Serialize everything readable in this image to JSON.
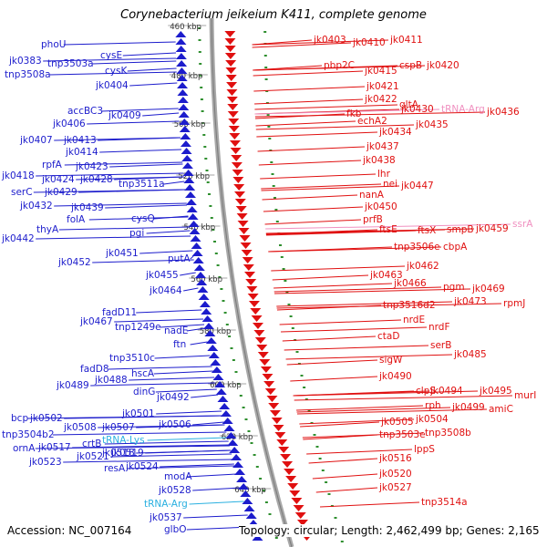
{
  "title": "Corynebacterium jeikeium K411, complete genome",
  "accession": "Accession: NC_007164",
  "topology": "Topology: circular; Length: 2,462,499 bp; Genes: 2,165",
  "colors": {
    "left_gene": "#1c1ccc",
    "right_gene": "#e01010",
    "trna_left": "#2ab0e0",
    "trna_right": "#f090c0",
    "backbone": "#a8a8a8",
    "ticks": "#2f8f2f"
  },
  "ruler": [
    "460 kbp",
    "480 kbp",
    "500 kbp",
    "520 kbp",
    "540 kbp",
    "560 kbp",
    "580 kbp",
    "600 kbp",
    "620 kbp",
    "640 kbp"
  ],
  "left_labels": [
    "phoU",
    "jk0383",
    "tnp3503a",
    "cysE",
    "cysK",
    "tnp3508a",
    "jk0404",
    "accBC3",
    "jk0409",
    "jk0406",
    "jk0407",
    "jk0413",
    "jk0414",
    "rpfA",
    "jk0423",
    "jk0418",
    "jk0424",
    "jk0428",
    "serC",
    "jk0429",
    "tnp3511a",
    "jk0432",
    "jk0439",
    "folA",
    "cysQ",
    "jk0442",
    "thyA",
    "pgi",
    "jk0451",
    "jk0452",
    "putA",
    "jk0455",
    "jk0464",
    "fadD11",
    "jk0467",
    "tnp1249e",
    "nadE",
    "ftn",
    "tnp3510c",
    "fadD8",
    "hscA",
    "jk0489",
    "jk0488",
    "dinG",
    "jk0492",
    "jk0501",
    "bcp",
    "jk0502",
    "jk0506",
    "tnp3504b2",
    "jk0508",
    "jk0507",
    "tRNA-Lys",
    "ornA",
    "jk0517",
    "crtB",
    "jk0519",
    "jk0523",
    "jk0521",
    "jk0518",
    "resA",
    "jk0524",
    "modA",
    "jk0528",
    "tRNA-Arg",
    "jk0537",
    "glbO"
  ],
  "right_labels": [
    "jk0403",
    "jk0410",
    "jk0411",
    "pbp2C",
    "cspB",
    "jk0420",
    "jk0415",
    "jk0421",
    "jk0422",
    "gltA",
    "fkb",
    "jk0430",
    "tRNA-Arg",
    "jk0436",
    "echA2",
    "jk0435",
    "jk0434",
    "jk0437",
    "jk0438",
    "lhr",
    "nei",
    "jk0447",
    "nanA",
    "jk0450",
    "prfB",
    "ftsE",
    "ftsX",
    "smpB",
    "jk0459",
    "ssrA",
    "tnp3506e",
    "cbpA",
    "jk0462",
    "jk0463",
    "pgm",
    "jk0466",
    "jk0469",
    "tnp3516d2",
    "jk0473",
    "rpmJ",
    "nrdE",
    "nrdF",
    "ctaD",
    "serB",
    "jk0485",
    "sigW",
    "jk0490",
    "clpS",
    "jk0494",
    "jk0495",
    "murI",
    "rph",
    "jk0499",
    "amiC",
    "jk0505",
    "jk0504",
    "tnp3503e",
    "tnp3508b",
    "lppS",
    "jk0516",
    "jk0520",
    "jk0527",
    "tnp3514a"
  ]
}
